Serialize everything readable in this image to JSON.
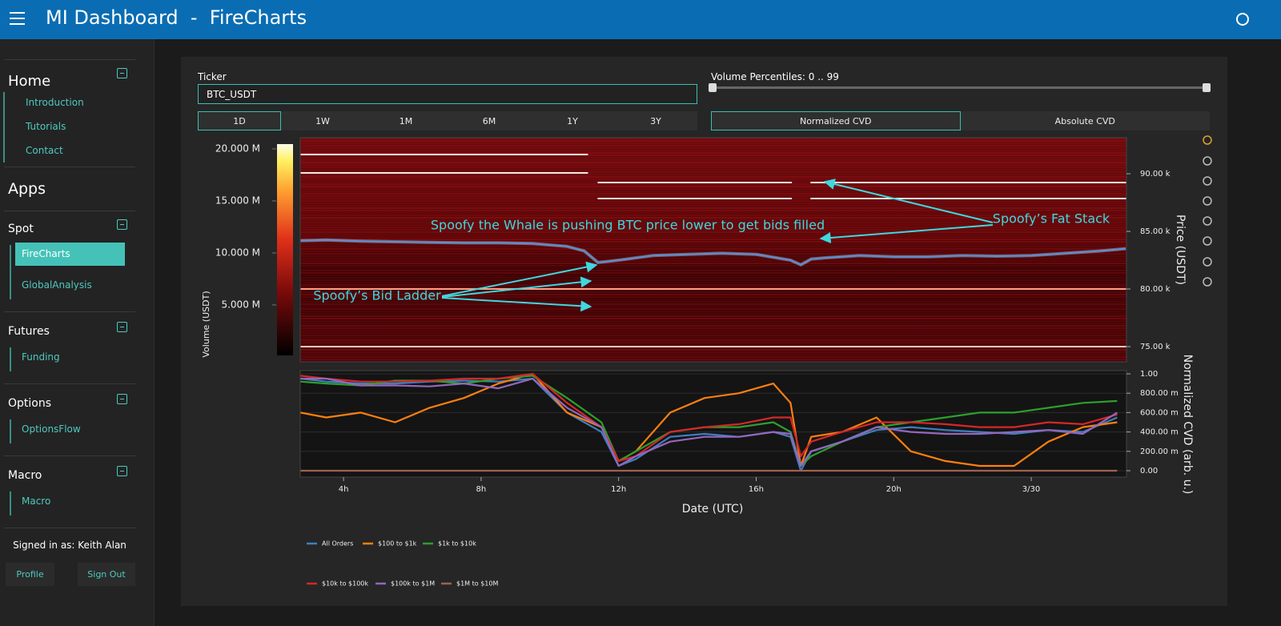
{
  "header": {
    "title": "MI Dashboard  -  FireCharts"
  },
  "sidebar": {
    "home": {
      "title": "Home",
      "links": [
        "Introduction",
        "Tutorials",
        "Contact"
      ]
    },
    "apps_title": "Apps",
    "groups": [
      {
        "title": "Spot",
        "links": [
          "FireCharts",
          "GlobalAnalysis"
        ]
      },
      {
        "title": "Futures",
        "links": [
          "Funding"
        ]
      },
      {
        "title": "Options",
        "links": [
          "OptionsFlow"
        ]
      },
      {
        "title": "Macro",
        "links": [
          "Macro"
        ]
      }
    ],
    "user": {
      "signed_in": "Signed in as: Keith Alan",
      "profile": "Profile",
      "sign_out": "Sign Out"
    }
  },
  "controls": {
    "ticker_label": "Ticker",
    "ticker": "BTC_USDT",
    "ranges": [
      "1D",
      "1W",
      "1M",
      "6M",
      "1Y",
      "3Y"
    ],
    "percentiles": "Volume Percentiles: 0 .. 99",
    "modes": [
      "Normalized CVD",
      "Absolute CVD"
    ]
  },
  "chart_data": [
    {
      "type": "heatmap",
      "ylabel": "Price (USDT)",
      "xlim": [
        2.74,
        26.77
      ],
      "ylim": [
        73680,
        93130
      ],
      "yticks": [
        {
          "value": 75000,
          "label": "75.00 k"
        },
        {
          "value": 80000,
          "label": "80.00 k"
        },
        {
          "value": 85000,
          "label": "85.00 k"
        },
        {
          "value": 90000,
          "label": "90.00 k"
        }
      ],
      "x": [
        2.75,
        3.5,
        4.5,
        5.5,
        6.5,
        7.5,
        8.5,
        9.5,
        10.5,
        11,
        11.4,
        12,
        13,
        14,
        15,
        16,
        17,
        17.3,
        17.6,
        18,
        19,
        20,
        21,
        22,
        23,
        24,
        25,
        26,
        26.75
      ],
      "values": [
        84200,
        84250,
        84150,
        84100,
        84050,
        84000,
        84000,
        83950,
        83700,
        83300,
        82300,
        82500,
        82900,
        83000,
        83100,
        83000,
        82500,
        82100,
        82600,
        82700,
        82900,
        82800,
        82800,
        82900,
        82850,
        82900,
        83100,
        83300,
        83500
      ],
      "color": "#5b8fd0",
      "levels": [
        {
          "value": 91670,
          "start": 2.74,
          "end": 11.11,
          "color": "#f3e6e2"
        },
        {
          "value": 90070,
          "start": 2.74,
          "end": 11.11,
          "color": "#f3e6e2"
        },
        {
          "value": 89240,
          "start": 11.39,
          "end": 17.04,
          "color": "#f3e6e2"
        },
        {
          "value": 89240,
          "start": 17.58,
          "end": 26.77,
          "color": "#f3e6e2"
        },
        {
          "value": 87850,
          "start": 11.39,
          "end": 17.04,
          "color": "#f3e6e2"
        },
        {
          "value": 87850,
          "start": 17.58,
          "end": 26.77,
          "color": "#f3e6e2"
        },
        {
          "value": 80000,
          "start": 2.74,
          "end": 26.77,
          "color": "#ff9f86"
        },
        {
          "value": 75000,
          "start": 2.74,
          "end": 26.77,
          "color": "#f0c8c0"
        }
      ],
      "colorbar": {
        "label": "Volume (USDT)",
        "lim": [
          150000,
          20460000
        ],
        "ticks": [
          {
            "value": 5000000,
            "label": "5.000 M"
          },
          {
            "value": 10000000,
            "label": "10.000 M"
          },
          {
            "value": 15000000,
            "label": "15.000 M"
          },
          {
            "value": 20000000,
            "label": "20.000 M"
          }
        ]
      },
      "annotations": [
        "Spoofy the Whale is pushing BTC price lower to get bids filled",
        "Spoofy’s Fat Stack",
        "Spoofy’s Bid Ladder"
      ]
    },
    {
      "type": "line",
      "xlabel": "Date (UTC)",
      "ylabel": "Normalized CVD (arb. u.)",
      "xlim": [
        2.74,
        26.77
      ],
      "ylim": [
        -0.066,
        1.033
      ],
      "xticks": [
        {
          "value": 4,
          "label": "4h"
        },
        {
          "value": 8,
          "label": "8h"
        },
        {
          "value": 12,
          "label": "12h"
        },
        {
          "value": 16,
          "label": "16h"
        },
        {
          "value": 20,
          "label": "20h"
        },
        {
          "value": 24,
          "label": "3/30"
        }
      ],
      "yticks": [
        {
          "value": 0,
          "label": "0.00"
        },
        {
          "value": 0.2,
          "label": "200.00 m"
        },
        {
          "value": 0.4,
          "label": "400.00 m"
        },
        {
          "value": 0.6,
          "label": "600.00 m"
        },
        {
          "value": 0.8,
          "label": "800.00 m"
        },
        {
          "value": 1,
          "label": "1.00"
        }
      ],
      "grid": true,
      "x": [
        2.75,
        3.5,
        4.5,
        5.5,
        6.5,
        7.5,
        8.5,
        9.5,
        10.5,
        11.5,
        12,
        12.5,
        13.5,
        14.5,
        15.5,
        16.5,
        17,
        17.3,
        17.6,
        18.5,
        19.5,
        20.5,
        21.5,
        22.5,
        23.5,
        24.5,
        25.5,
        26.5
      ],
      "series": [
        {
          "name": "All Orders",
          "color": "#3f7fc0",
          "values": [
            0.95,
            0.92,
            0.9,
            0.9,
            0.92,
            0.93,
            0.92,
            0.95,
            0.6,
            0.4,
            0.05,
            0.12,
            0.35,
            0.38,
            0.35,
            0.4,
            0.35,
            0.0,
            0.2,
            0.3,
            0.42,
            0.45,
            0.42,
            0.4,
            0.38,
            0.42,
            0.4,
            0.55
          ]
        },
        {
          "name": "$100 to $1k",
          "color": "#ff7f0e",
          "values": [
            0.6,
            0.55,
            0.6,
            0.5,
            0.65,
            0.75,
            0.9,
            1.0,
            0.6,
            0.45,
            0.1,
            0.2,
            0.6,
            0.75,
            0.8,
            0.9,
            0.7,
            0.05,
            0.35,
            0.4,
            0.55,
            0.2,
            0.1,
            0.05,
            0.05,
            0.3,
            0.45,
            0.5
          ]
        },
        {
          "name": "$1k to $10k",
          "color": "#2ca02c",
          "values": [
            0.92,
            0.9,
            0.88,
            0.93,
            0.93,
            0.9,
            0.95,
            0.98,
            0.75,
            0.5,
            0.1,
            0.2,
            0.4,
            0.45,
            0.45,
            0.5,
            0.4,
            0.05,
            0.15,
            0.3,
            0.45,
            0.5,
            0.55,
            0.6,
            0.6,
            0.65,
            0.7,
            0.72
          ]
        },
        {
          "name": "$10k to $100k",
          "color": "#d62728",
          "values": [
            0.98,
            0.95,
            0.92,
            0.92,
            0.93,
            0.95,
            0.95,
            1.0,
            0.7,
            0.45,
            0.1,
            0.15,
            0.4,
            0.45,
            0.48,
            0.55,
            0.55,
            0.15,
            0.3,
            0.4,
            0.5,
            0.5,
            0.48,
            0.45,
            0.45,
            0.5,
            0.48,
            0.58
          ]
        },
        {
          "name": "$100k to $1M",
          "color": "#9467bd",
          "values": [
            0.95,
            0.95,
            0.88,
            0.88,
            0.87,
            0.9,
            0.85,
            0.95,
            0.65,
            0.45,
            0.05,
            0.15,
            0.3,
            0.35,
            0.35,
            0.4,
            0.38,
            0.05,
            0.2,
            0.3,
            0.45,
            0.4,
            0.38,
            0.38,
            0.4,
            0.42,
            0.38,
            0.6
          ]
        },
        {
          "name": "$1M to $10M",
          "color": "#a0604f",
          "values": [
            0,
            0,
            0,
            0,
            0,
            0,
            0,
            0,
            0,
            0,
            0,
            0,
            0,
            0,
            0,
            0,
            0,
            0,
            0,
            0,
            0,
            0,
            0,
            0,
            0,
            0,
            0,
            0
          ]
        }
      ]
    }
  ]
}
